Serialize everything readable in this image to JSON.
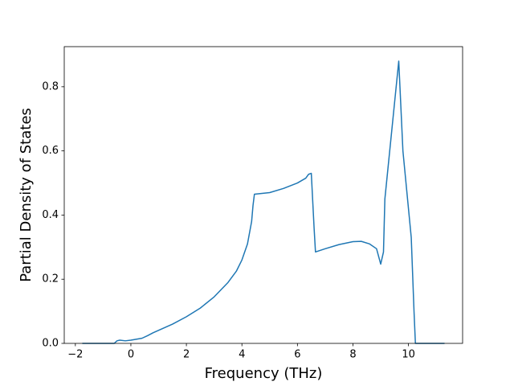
{
  "chart_data": {
    "type": "line",
    "x_label": "Frequency (THz)",
    "y_label": "Partial Density of States",
    "x": [
      -1.75,
      -0.6,
      -0.5,
      -0.4,
      -0.2,
      0,
      0.4,
      0.6,
      0.8,
      1.5,
      2,
      2.5,
      3,
      3.5,
      3.8,
      4,
      4.2,
      4.35,
      4.4,
      4.45,
      5,
      5.5,
      6,
      6.3,
      6.4,
      6.5,
      6.6,
      6.65,
      7,
      7.5,
      8,
      8.3,
      8.6,
      8.85,
      9.0,
      9.1,
      9.15,
      9.65,
      9.8,
      10.1,
      10.2,
      10.25,
      11.3
    ],
    "series": [
      {
        "color": "#1f77b4",
        "values": [
          0,
          0,
          0.008,
          0.01,
          0.008,
          0.01,
          0.016,
          0.024,
          0.033,
          0.06,
          0.083,
          0.11,
          0.145,
          0.19,
          0.225,
          0.26,
          0.31,
          0.38,
          0.43,
          0.465,
          0.47,
          0.483,
          0.5,
          0.515,
          0.527,
          0.53,
          0.36,
          0.285,
          0.295,
          0.308,
          0.317,
          0.318,
          0.31,
          0.295,
          0.247,
          0.285,
          0.45,
          0.88,
          0.6,
          0.33,
          0.1,
          0,
          0
        ]
      }
    ],
    "xlim": [
      -2.4,
      11.95
    ],
    "ylim": [
      0,
      0.925
    ],
    "xticks": [
      {
        "value": -2,
        "label": "−2"
      },
      0,
      2,
      4,
      6,
      8,
      10
    ],
    "yticks": [
      {
        "value": 0,
        "label": "0.0"
      },
      0.2,
      0.4,
      0.6,
      0.8
    ]
  }
}
